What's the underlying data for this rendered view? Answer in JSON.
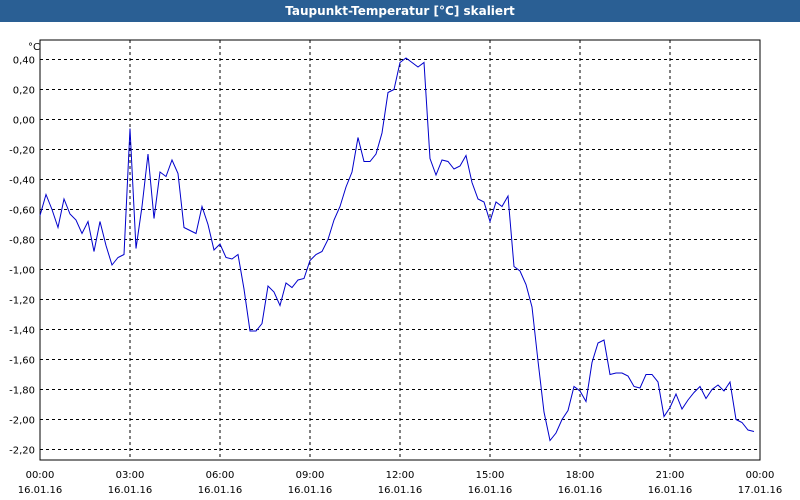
{
  "window": {
    "title": "Taupunkt-Temperatur [°C] skaliert"
  },
  "colors": {
    "titlebar": "#2a5f94",
    "line": "#0000cc",
    "grid": "#000000",
    "text": "#000000"
  },
  "chart_data": {
    "type": "line",
    "title": "Taupunkt-Temperatur [°C] skaliert",
    "ylabel": "°C",
    "xlabel": "",
    "ylim": [
      -2.27,
      0.53
    ],
    "y_ticks": [
      "0,40",
      "0,20",
      "0,00",
      "-0,20",
      "-0,40",
      "-0,60",
      "-0,80",
      "-1,00",
      "-1,20",
      "-1,40",
      "-1,60",
      "-1,80",
      "-2,00",
      "-2,20"
    ],
    "y_tick_values": [
      0.4,
      0.2,
      0.0,
      -0.2,
      -0.4,
      -0.6,
      -0.8,
      -1.0,
      -1.2,
      -1.4,
      -1.6,
      -1.8,
      -2.0,
      -2.2
    ],
    "x_ticks": [
      {
        "time": "00:00",
        "date": "16.01.16"
      },
      {
        "time": "03:00",
        "date": "16.01.16"
      },
      {
        "time": "06:00",
        "date": "16.01.16"
      },
      {
        "time": "09:00",
        "date": "16.01.16"
      },
      {
        "time": "12:00",
        "date": "16.01.16"
      },
      {
        "time": "15:00",
        "date": "16.01.16"
      },
      {
        "time": "18:00",
        "date": "16.01.16"
      },
      {
        "time": "21:00",
        "date": "16.01.16"
      },
      {
        "time": "00:00",
        "date": "17.01.16"
      }
    ],
    "grid": true,
    "series": [
      {
        "values_hours": [
          0,
          0.2,
          0.4,
          0.6,
          0.8,
          1.0,
          1.2,
          1.4,
          1.6,
          1.8,
          2.0,
          2.2,
          2.4,
          2.6,
          2.8,
          3.0,
          3.2,
          3.4,
          3.6,
          3.8,
          4.0,
          4.2,
          4.4,
          4.6,
          4.8,
          5.0,
          5.2,
          5.4,
          5.6,
          5.8,
          6.0,
          6.2,
          6.4,
          6.6,
          6.8,
          7.0,
          7.2,
          7.4,
          7.6,
          7.8,
          8.0,
          8.2,
          8.4,
          8.6,
          8.8,
          9.0,
          9.2,
          9.4,
          9.6,
          9.8,
          10.0,
          10.2,
          10.4,
          10.6,
          10.8,
          11.0,
          11.2,
          11.4,
          11.6,
          11.8,
          12.0,
          12.2,
          12.4,
          12.6,
          12.8,
          13.0,
          13.2,
          13.4,
          13.6,
          13.8,
          14.0,
          14.2,
          14.4,
          14.6,
          14.8,
          15.0,
          15.2,
          15.4,
          15.6,
          15.8,
          16.0,
          16.2,
          16.4,
          16.6,
          16.8,
          17.0,
          17.2,
          17.4,
          17.6,
          17.8,
          18.0,
          18.2,
          18.4,
          18.6,
          18.8,
          19.0,
          19.2,
          19.4,
          19.6,
          19.8,
          20.0,
          20.2,
          20.4,
          20.6,
          20.8,
          21.0,
          21.2,
          21.4,
          21.6,
          21.8,
          22.0,
          22.2,
          22.4,
          22.6,
          22.8,
          23.0,
          23.2,
          23.4,
          23.6,
          23.8
        ],
        "values": [
          -0.64,
          -0.5,
          -0.6,
          -0.72,
          -0.53,
          -0.63,
          -0.67,
          -0.76,
          -0.68,
          -0.88,
          -0.68,
          -0.84,
          -0.97,
          -0.92,
          -0.9,
          -0.06,
          -0.86,
          -0.58,
          -0.23,
          -0.66,
          -0.35,
          -0.38,
          -0.27,
          -0.36,
          -0.72,
          -0.74,
          -0.76,
          -0.58,
          -0.7,
          -0.87,
          -0.83,
          -0.92,
          -0.93,
          -0.9,
          -1.13,
          -1.41,
          -1.41,
          -1.36,
          -1.11,
          -1.15,
          -1.24,
          -1.09,
          -1.12,
          -1.07,
          -1.06,
          -0.94,
          -0.9,
          -0.88,
          -0.8,
          -0.67,
          -0.58,
          -0.45,
          -0.35,
          -0.12,
          -0.28,
          -0.28,
          -0.23,
          -0.09,
          0.18,
          0.2,
          0.38,
          0.41,
          0.38,
          0.35,
          0.38,
          -0.26,
          -0.37,
          -0.27,
          -0.28,
          -0.33,
          -0.31,
          -0.24,
          -0.42,
          -0.53,
          -0.55,
          -0.68,
          -0.55,
          -0.58,
          -0.51,
          -0.98,
          -1.01,
          -1.1,
          -1.25,
          -1.61,
          -1.95,
          -2.14,
          -2.09,
          -2.0,
          -1.94,
          -1.78,
          -1.81,
          -1.88,
          -1.62,
          -1.49,
          -1.47,
          -1.7,
          -1.69,
          -1.69,
          -1.71,
          -1.78,
          -1.79,
          -1.7,
          -1.7,
          -1.75,
          -1.98,
          -1.92,
          -1.83,
          -1.93,
          -1.87,
          -1.82,
          -1.78,
          -1.86,
          -1.8,
          -1.77,
          -1.81,
          -1.75,
          -2.0,
          -2.02,
          -2.07,
          -2.08
        ]
      }
    ]
  }
}
